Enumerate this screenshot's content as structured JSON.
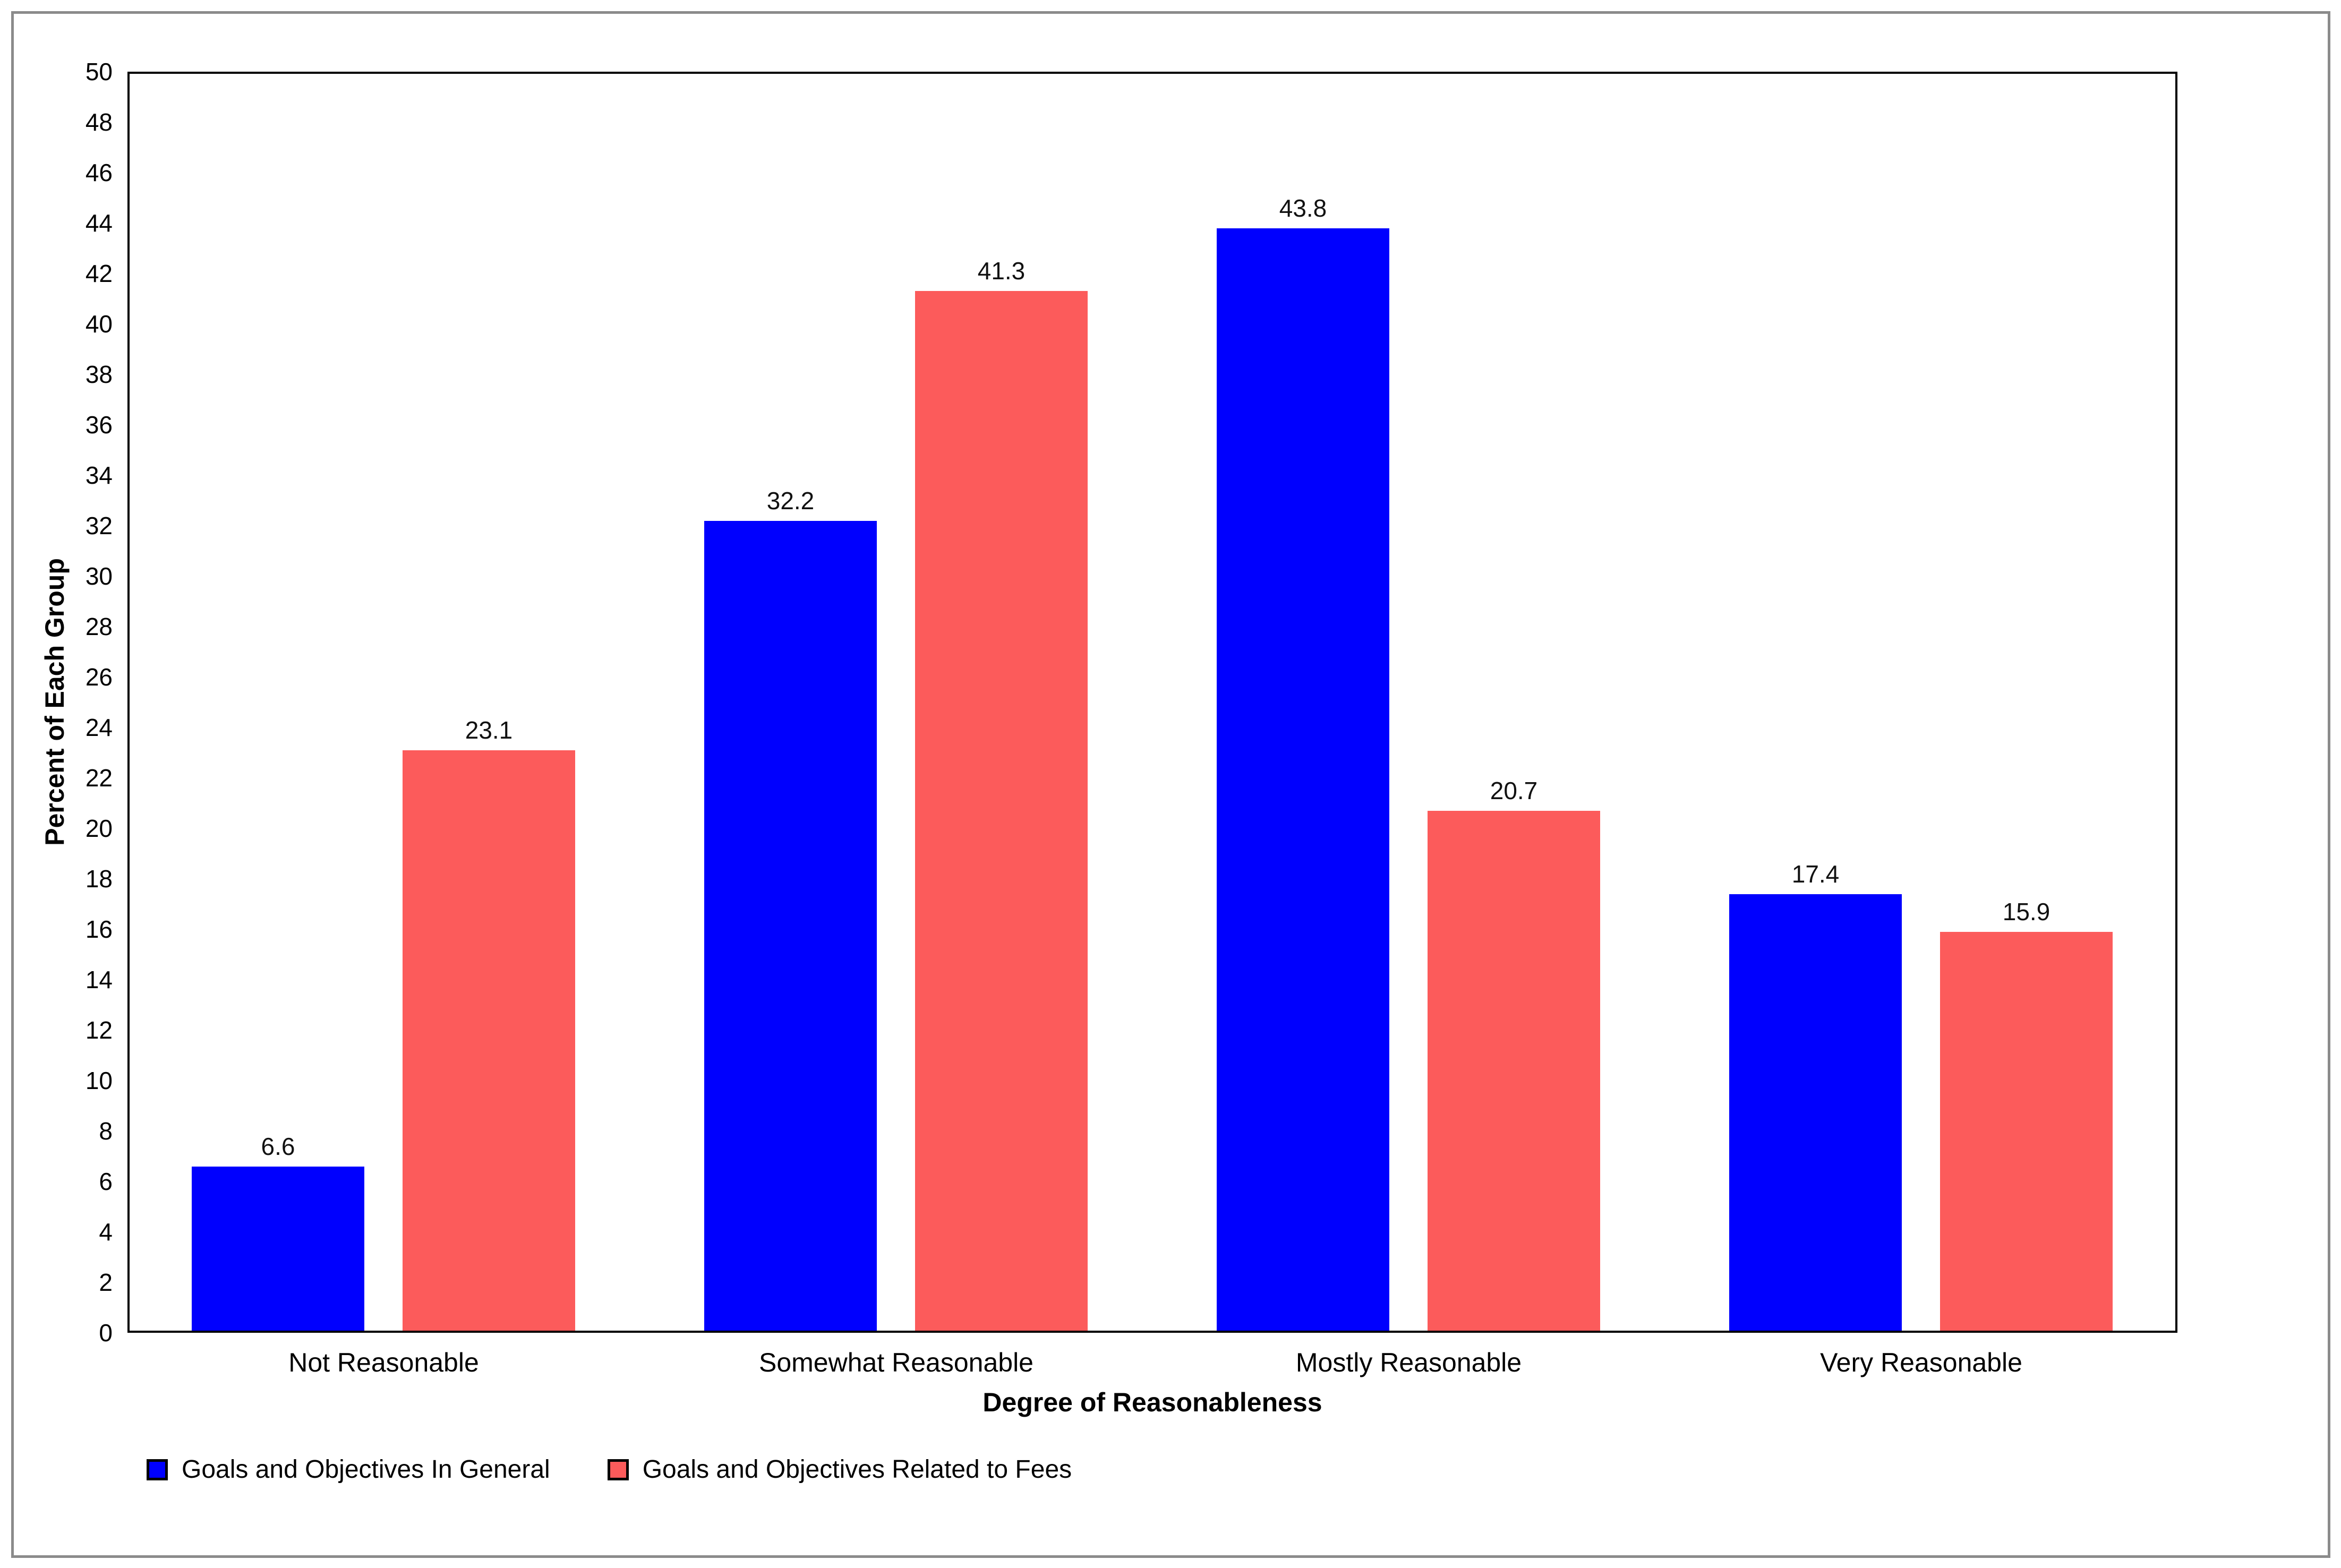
{
  "chart_data": {
    "type": "bar",
    "title": "",
    "categories": [
      "Not Reasonable",
      "Somewhat Reasonable",
      "Mostly Reasonable",
      "Very Reasonable"
    ],
    "series": [
      {
        "name": "Goals and Objectives In General",
        "color": "#0000FE",
        "values": [
          6.6,
          32.2,
          43.8,
          17.4
        ]
      },
      {
        "name": "Goals and Objectives Related to Fees",
        "color": "#FC5B5B",
        "values": [
          23.1,
          41.3,
          20.7,
          15.9
        ]
      }
    ],
    "xlabel": "Degree of Reasonableness",
    "ylabel": "Percent of Each Group",
    "ylim": [
      0,
      50
    ],
    "ytick_step": 2,
    "grid": false,
    "value_labels": true,
    "legend_position": "bottom-left",
    "frame_color": "#8b8b8b",
    "axis_color": "#000000"
  }
}
